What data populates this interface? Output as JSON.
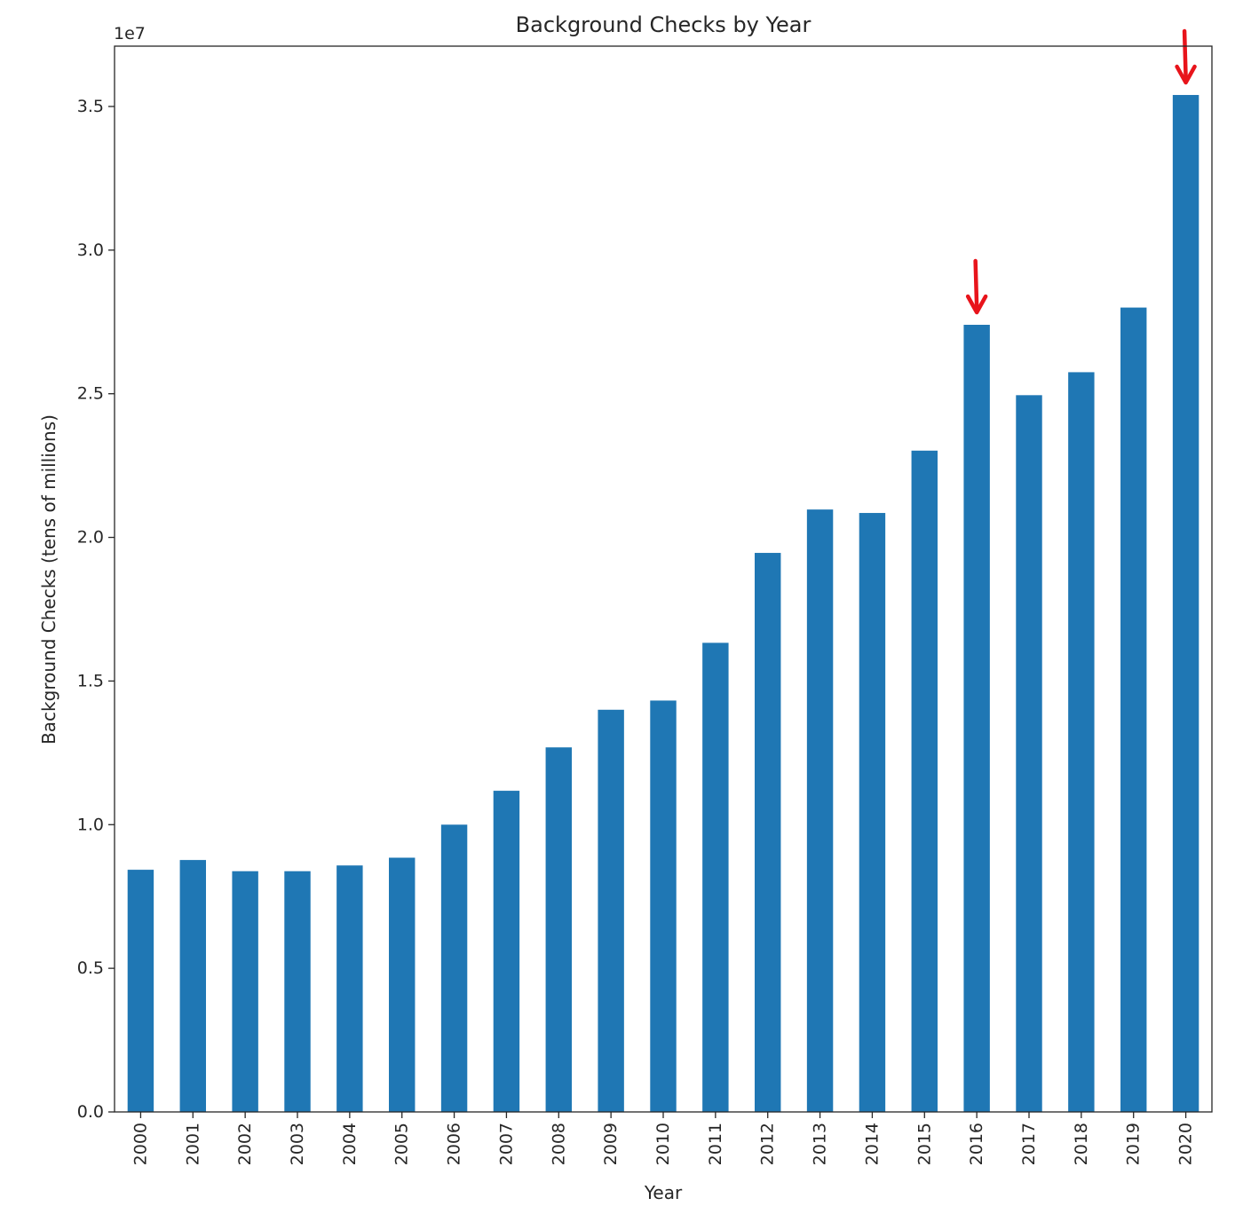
{
  "chart_data": {
    "type": "bar",
    "title": "Background Checks by Year",
    "xlabel": "Year",
    "ylabel": "Background Checks (tens of millions)",
    "offset_label": "1e7",
    "scale_factor": 10000000,
    "ylim": [
      0,
      37100000
    ],
    "yticks": [
      0.0,
      0.5,
      1.0,
      1.5,
      2.0,
      2.5,
      3.0,
      3.5
    ],
    "ytick_labels": [
      "0.0",
      "0.5",
      "1.0",
      "1.5",
      "2.0",
      "2.5",
      "3.0",
      "3.5"
    ],
    "grid": false,
    "legend": "none",
    "bar_color": "#1f77b4",
    "annotation_color": "#e8141b",
    "categories": [
      "2000",
      "2001",
      "2002",
      "2003",
      "2004",
      "2005",
      "2006",
      "2007",
      "2008",
      "2009",
      "2010",
      "2011",
      "2012",
      "2013",
      "2014",
      "2015",
      "2016",
      "2017",
      "2018",
      "2019",
      "2020"
    ],
    "values": [
      8430000,
      8770000,
      8380000,
      8380000,
      8580000,
      8850000,
      10000000,
      11180000,
      12690000,
      14000000,
      14320000,
      16330000,
      19460000,
      20970000,
      20850000,
      23020000,
      27400000,
      24950000,
      25750000,
      28000000,
      35400000
    ],
    "annotations": [
      {
        "type": "arrow",
        "category": "2016"
      },
      {
        "type": "arrow",
        "category": "2020"
      }
    ]
  }
}
